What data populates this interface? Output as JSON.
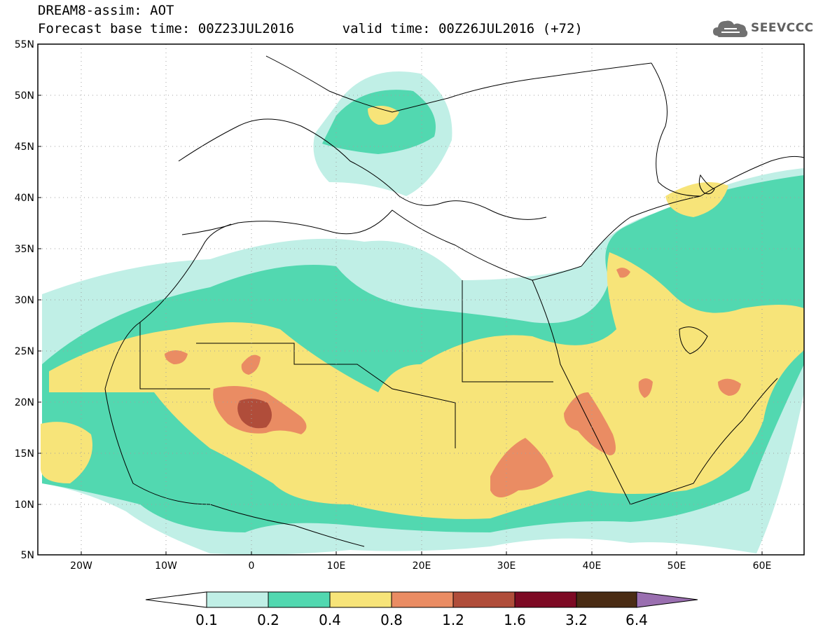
{
  "title_line1": "DREAM8-assim: AOT",
  "title_line2": "Forecast base time: 00Z23JUL2016      valid time: 00Z26JUL2016 (+72)",
  "logo_text": "SEEVCCC",
  "map": {
    "lon_range": [
      -25,
      65
    ],
    "lat_range": [
      5,
      55
    ],
    "lat_ticks": [
      "55N",
      "50N",
      "45N",
      "40N",
      "35N",
      "30N",
      "25N",
      "20N",
      "15N",
      "10N",
      "5N"
    ],
    "lon_ticks": [
      "20W",
      "10W",
      "0",
      "10E",
      "20E",
      "30E",
      "40E",
      "50E",
      "60E"
    ],
    "gridlines": "dotted"
  },
  "legend": {
    "thresholds": [
      "0.1",
      "0.2",
      "0.4",
      "0.8",
      "1.2",
      "1.6",
      "3.2",
      "6.4"
    ],
    "colors": [
      "#ffffff",
      "#c0efe6",
      "#52d8b0",
      "#f7e479",
      "#ea8c63",
      "#b04d3a",
      "#7d0a24",
      "#4a2c14",
      "#9a6fb0"
    ]
  }
}
